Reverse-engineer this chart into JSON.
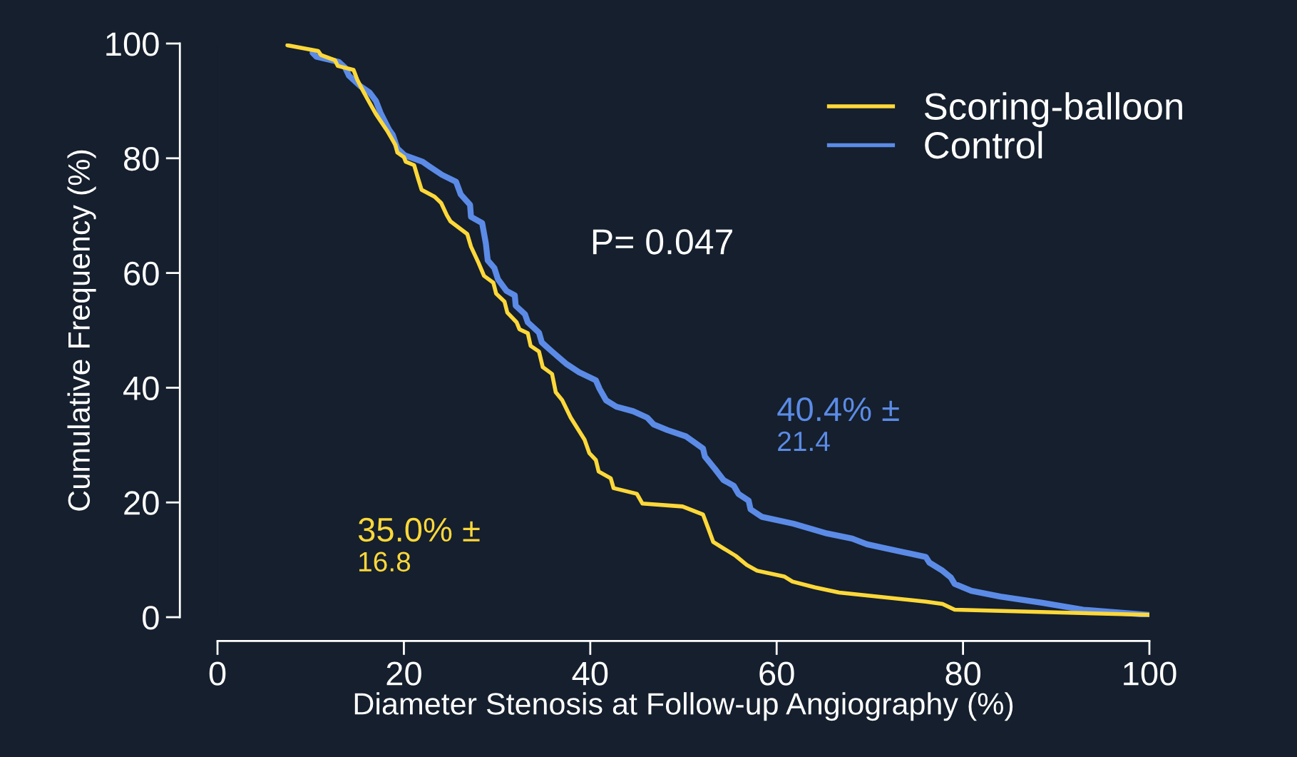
{
  "chart_data": {
    "type": "line",
    "xlabel": "Diameter Stenosis at Follow-up Angiography (%)",
    "ylabel": "Cumulative Frequency (%)",
    "xlim": [
      0,
      100
    ],
    "ylim": [
      0,
      100
    ],
    "xticks": [
      0,
      20,
      40,
      60,
      80,
      100
    ],
    "yticks": [
      0,
      20,
      40,
      60,
      80,
      100
    ],
    "grid": false,
    "legend": "top right",
    "marker": "none",
    "line_style": "solid",
    "annotations": [
      "P= 0.047",
      "35.0% ±\n16.8",
      "40.4% ±\n21.4"
    ],
    "series": [
      {
        "name": "Scoring-balloon",
        "color": "#fdd83a",
        "x": [
          7.5,
          10.8,
          11.1,
          12.6,
          12.9,
          14.6,
          15.0,
          15.4,
          16.1,
          17.0,
          18.2,
          19.1,
          19.3,
          20.0,
          20.2,
          21.1,
          21.5,
          21.9,
          23.3,
          24.0,
          24.6,
          25.0,
          26.8,
          27.2,
          28.0,
          28.6,
          29.6,
          29.9,
          30.8,
          31.1,
          32.1,
          32.4,
          33.3,
          33.6,
          34.5,
          34.9,
          35.9,
          36.3,
          37.0,
          37.9,
          39.4,
          39.9,
          40.6,
          40.9,
          42.2,
          42.5,
          45.0,
          45.6,
          49.9,
          52.1,
          52.7,
          53.2,
          54.3,
          55.6,
          56.8,
          57.9,
          60.8,
          61.7,
          64.1,
          66.7,
          76.0,
          77.8,
          79.1,
          100
        ],
        "values": [
          99.7,
          98.7,
          98.0,
          97.1,
          96.1,
          95.4,
          93.7,
          92.4,
          90.3,
          87.7,
          84.8,
          82.3,
          81.0,
          80.2,
          79.4,
          78.8,
          76.6,
          74.5,
          73.3,
          72.2,
          70.1,
          69.0,
          66.8,
          64.6,
          61.8,
          59.5,
          58.3,
          56.4,
          55.0,
          53.1,
          51.4,
          50.2,
          49.5,
          47.3,
          46.3,
          43.6,
          42.4,
          39.2,
          37.8,
          34.8,
          30.9,
          28.6,
          27.4,
          25.4,
          24.2,
          22.5,
          21.5,
          19.8,
          19.3,
          17.9,
          15.3,
          13.1,
          12.0,
          10.7,
          9.1,
          8.1,
          7.1,
          6.2,
          5.2,
          4.3,
          2.7,
          2.3,
          1.3,
          0.4
        ]
      },
      {
        "name": "Control",
        "color": "#5b8be6",
        "x": [
          10.2,
          10.6,
          13.0,
          13.7,
          14.1,
          15.3,
          16.3,
          17.0,
          17.5,
          18.4,
          18.8,
          19.3,
          20.1,
          22.0,
          22.8,
          24.1,
          25.6,
          26.1,
          27.1,
          27.2,
          28.4,
          28.8,
          29.0,
          29.7,
          30.1,
          31.0,
          31.9,
          32.0,
          33.0,
          33.3,
          34.5,
          34.8,
          35.9,
          37.4,
          38.8,
          40.6,
          41.0,
          41.7,
          42.8,
          44.6,
          46.1,
          46.8,
          48.3,
          50.3,
          52.1,
          52.3,
          53.4,
          54.3,
          55.4,
          55.9,
          57.0,
          57.2,
          58.4,
          61.8,
          65.4,
          68.1,
          69.7,
          76.0,
          76.4,
          77.8,
          78.7,
          79.1,
          80.9,
          84.0,
          88.5,
          92.9,
          100
        ],
        "values": [
          98.4,
          97.7,
          96.8,
          95.8,
          94.4,
          92.6,
          91.5,
          90.0,
          87.9,
          85.0,
          84.1,
          81.7,
          80.5,
          79.4,
          78.5,
          77.1,
          75.9,
          73.7,
          71.9,
          69.8,
          68.7,
          65.1,
          62.2,
          60.9,
          58.9,
          56.9,
          56.1,
          54.3,
          52.8,
          51.4,
          49.6,
          47.9,
          46.3,
          44.2,
          42.7,
          41.3,
          39.8,
          37.8,
          36.7,
          35.9,
          34.8,
          33.6,
          32.6,
          31.5,
          29.4,
          28.0,
          25.8,
          23.9,
          22.9,
          21.5,
          20.3,
          18.8,
          17.5,
          16.3,
          14.6,
          13.7,
          12.7,
          10.5,
          9.5,
          8.1,
          6.9,
          5.8,
          4.6,
          3.6,
          2.5,
          1.3,
          0.4
        ]
      }
    ]
  }
}
